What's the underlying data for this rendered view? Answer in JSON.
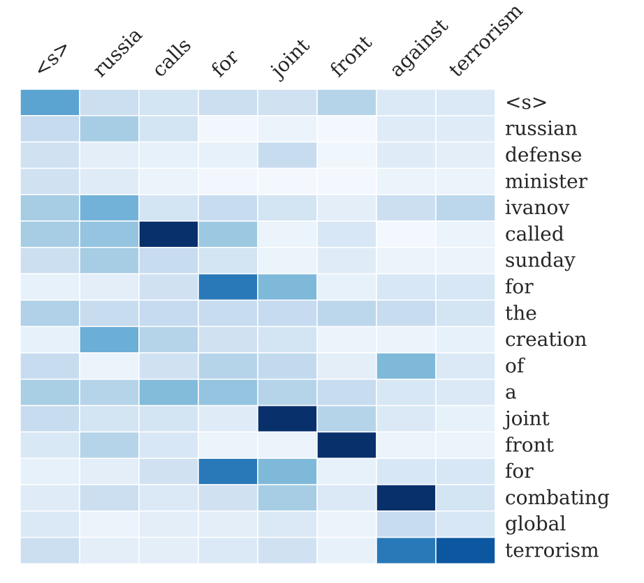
{
  "chart_data": {
    "type": "heatmap",
    "title": "",
    "x_labels": [
      "<s>",
      "russia",
      "calls",
      "for",
      "joint",
      "front",
      "against",
      "terrorism"
    ],
    "y_labels": [
      "<s>",
      "russian",
      "defense",
      "minister",
      "ivanov",
      "called",
      "sunday",
      "for",
      "the",
      "creation",
      "of",
      "a",
      "joint",
      "front",
      "for",
      "combating",
      "global",
      "terrorism"
    ],
    "x_label_position": "top",
    "x_label_rotation": -45,
    "y_label_position": "right",
    "colormap": "Blues",
    "value_range": [
      0,
      1
    ],
    "grid": false,
    "values": [
      [
        0.55,
        0.22,
        0.18,
        0.22,
        0.2,
        0.3,
        0.14,
        0.14
      ],
      [
        0.25,
        0.35,
        0.18,
        0.03,
        0.06,
        0.02,
        0.12,
        0.12
      ],
      [
        0.2,
        0.1,
        0.08,
        0.08,
        0.24,
        0.04,
        0.12,
        0.1
      ],
      [
        0.2,
        0.12,
        0.06,
        0.03,
        0.02,
        0.02,
        0.06,
        0.06
      ],
      [
        0.35,
        0.48,
        0.18,
        0.24,
        0.18,
        0.1,
        0.22,
        0.28
      ],
      [
        0.35,
        0.4,
        1.0,
        0.38,
        0.06,
        0.16,
        0.02,
        0.06
      ],
      [
        0.22,
        0.35,
        0.24,
        0.18,
        0.06,
        0.12,
        0.06,
        0.06
      ],
      [
        0.08,
        0.1,
        0.2,
        0.72,
        0.45,
        0.08,
        0.16,
        0.16
      ],
      [
        0.32,
        0.24,
        0.25,
        0.24,
        0.25,
        0.28,
        0.24,
        0.18
      ],
      [
        0.08,
        0.5,
        0.3,
        0.2,
        0.18,
        0.06,
        0.06,
        0.08
      ],
      [
        0.24,
        0.06,
        0.2,
        0.3,
        0.26,
        0.1,
        0.45,
        0.14
      ],
      [
        0.34,
        0.3,
        0.44,
        0.4,
        0.3,
        0.24,
        0.16,
        0.14
      ],
      [
        0.24,
        0.18,
        0.18,
        0.12,
        1.0,
        0.3,
        0.14,
        0.08
      ],
      [
        0.15,
        0.3,
        0.16,
        0.06,
        0.06,
        1.0,
        0.06,
        0.06
      ],
      [
        0.08,
        0.1,
        0.2,
        0.72,
        0.45,
        0.08,
        0.16,
        0.16
      ],
      [
        0.12,
        0.22,
        0.14,
        0.2,
        0.35,
        0.14,
        1.0,
        0.18
      ],
      [
        0.14,
        0.06,
        0.1,
        0.1,
        0.14,
        0.06,
        0.24,
        0.16
      ],
      [
        0.22,
        0.1,
        0.1,
        0.14,
        0.2,
        0.08,
        0.72,
        0.85
      ]
    ]
  },
  "colors": {
    "low": "#f7fbff",
    "high": "#08306b",
    "label": "#262626",
    "background": "#ffffff"
  }
}
